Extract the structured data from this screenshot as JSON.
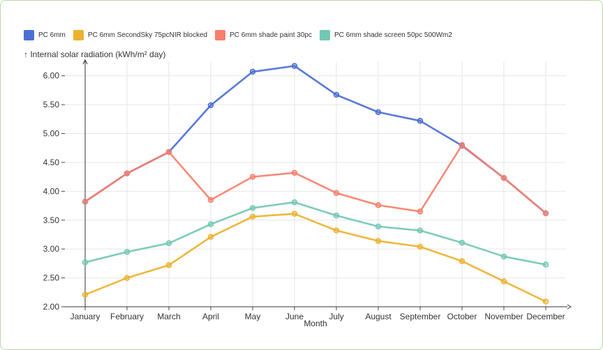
{
  "chart_data": {
    "type": "line",
    "title": "",
    "xlabel": "Month",
    "ylabel": "↑ Internal solar radiation (kWh/m² day)",
    "ylim": [
      2.0,
      6.25
    ],
    "yticks": [
      "2.00",
      "2.50",
      "3.00",
      "3.50",
      "4.00",
      "4.50",
      "5.00",
      "5.50",
      "6.00"
    ],
    "grid": true,
    "legend_position": "top-left",
    "categories": [
      "January",
      "February",
      "March",
      "April",
      "May",
      "June",
      "July",
      "August",
      "September",
      "October",
      "November",
      "December"
    ],
    "series": [
      {
        "name": "PC 6mm",
        "color": "#4b6fd3",
        "values": [
          3.82,
          4.31,
          4.68,
          5.49,
          6.07,
          6.17,
          5.67,
          5.37,
          5.22,
          4.79,
          4.23,
          3.62
        ]
      },
      {
        "name": "PC 6mm SecondSky 75pcNIR blocked",
        "color": "#ecb22e",
        "values": [
          2.21,
          2.5,
          2.72,
          3.21,
          3.56,
          3.61,
          3.32,
          3.14,
          3.04,
          2.79,
          2.44,
          2.09
        ]
      },
      {
        "name": "PC 6mm shade paint 30pc",
        "color": "#f77f6c",
        "values": [
          3.82,
          4.31,
          4.68,
          3.85,
          4.25,
          4.32,
          3.97,
          3.76,
          3.65,
          4.8,
          4.23,
          3.62
        ]
      },
      {
        "name": "PC 6mm shade screen 50pc 500Wm2",
        "color": "#72c8b4",
        "values": [
          2.77,
          2.95,
          3.1,
          3.43,
          3.71,
          3.81,
          3.58,
          3.39,
          3.32,
          3.11,
          2.87,
          2.73
        ]
      }
    ]
  }
}
